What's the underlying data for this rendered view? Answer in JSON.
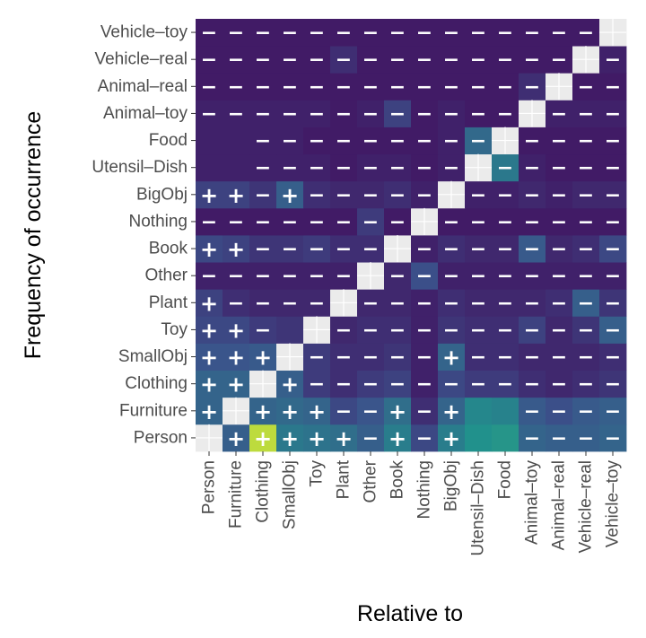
{
  "chart_data": {
    "type": "heatmap",
    "title": "",
    "xlabel": "Relative to",
    "ylabel": "Frequency of occurrence",
    "categories": [
      "Person",
      "Furniture",
      "Clothing",
      "SmallObj",
      "Toy",
      "Plant",
      "Other",
      "Book",
      "Nothing",
      "BigObj",
      "Utensil–Dish",
      "Food",
      "Animal–toy",
      "Animal–real",
      "Vehicle–real",
      "Vehicle–toy"
    ],
    "rows_bottom_to_top": [
      "Person",
      "Furniture",
      "Clothing",
      "SmallObj",
      "Toy",
      "Plant",
      "Other",
      "Book",
      "Nothing",
      "BigObj",
      "Utensil–Dish",
      "Food",
      "Animal–toy",
      "Animal–real",
      "Vehicle–real",
      "Vehicle–toy"
    ],
    "diagonal": "not applicable (blank)",
    "colormap": "viridis",
    "values": [
      [
        null,
        0.3,
        0.9,
        0.4,
        0.38,
        0.36,
        0.3,
        0.42,
        0.22,
        0.42,
        0.5,
        0.52,
        0.32,
        0.3,
        0.3,
        0.32
      ],
      [
        0.32,
        null,
        0.32,
        0.34,
        0.32,
        0.22,
        0.26,
        0.36,
        0.14,
        0.32,
        0.46,
        0.44,
        0.28,
        0.24,
        0.28,
        0.3
      ],
      [
        0.32,
        0.32,
        null,
        0.3,
        0.18,
        0.14,
        0.18,
        0.2,
        0.1,
        0.22,
        0.18,
        0.18,
        0.14,
        0.12,
        0.14,
        0.16
      ],
      [
        0.26,
        0.26,
        0.28,
        null,
        0.18,
        0.14,
        0.14,
        0.16,
        0.1,
        0.32,
        0.14,
        0.14,
        0.12,
        0.12,
        0.12,
        0.14
      ],
      [
        0.22,
        0.22,
        0.18,
        0.16,
        null,
        0.12,
        0.14,
        0.14,
        0.1,
        0.16,
        0.14,
        0.14,
        0.2,
        0.12,
        0.16,
        0.3
      ],
      [
        0.2,
        0.14,
        0.12,
        0.12,
        0.12,
        null,
        0.12,
        0.12,
        0.1,
        0.14,
        0.12,
        0.12,
        0.12,
        0.14,
        0.3,
        0.16
      ],
      [
        0.1,
        0.1,
        0.1,
        0.1,
        0.1,
        0.1,
        null,
        0.12,
        0.24,
        0.1,
        0.1,
        0.1,
        0.1,
        0.1,
        0.1,
        0.1
      ],
      [
        0.22,
        0.2,
        0.16,
        0.16,
        0.18,
        0.14,
        0.14,
        null,
        0.1,
        0.14,
        0.12,
        0.12,
        0.28,
        0.12,
        0.14,
        0.22
      ],
      [
        0.08,
        0.08,
        0.08,
        0.08,
        0.08,
        0.08,
        0.18,
        0.08,
        null,
        0.08,
        0.08,
        0.08,
        0.08,
        0.08,
        0.08,
        0.08
      ],
      [
        0.2,
        0.2,
        0.16,
        0.3,
        0.14,
        0.12,
        0.12,
        0.14,
        0.1,
        null,
        0.1,
        0.1,
        0.12,
        0.1,
        0.12,
        0.12
      ],
      [
        0.1,
        0.1,
        0.1,
        0.1,
        0.1,
        0.08,
        0.1,
        0.1,
        0.08,
        0.1,
        null,
        0.4,
        0.1,
        0.08,
        0.08,
        0.08
      ],
      [
        0.1,
        0.1,
        0.1,
        0.1,
        0.08,
        0.08,
        0.08,
        0.08,
        0.08,
        0.1,
        0.34,
        null,
        0.08,
        0.08,
        0.08,
        0.08
      ],
      [
        0.1,
        0.1,
        0.1,
        0.1,
        0.1,
        0.08,
        0.1,
        0.2,
        0.08,
        0.1,
        0.08,
        0.08,
        null,
        0.1,
        0.1,
        0.1
      ],
      [
        0.08,
        0.08,
        0.08,
        0.08,
        0.08,
        0.08,
        0.08,
        0.08,
        0.08,
        0.08,
        0.08,
        0.08,
        0.14,
        null,
        0.08,
        0.08
      ],
      [
        0.08,
        0.08,
        0.08,
        0.08,
        0.08,
        0.14,
        0.08,
        0.08,
        0.08,
        0.08,
        0.08,
        0.08,
        0.08,
        0.08,
        null,
        0.1
      ],
      [
        0.08,
        0.08,
        0.08,
        0.08,
        0.08,
        0.08,
        0.08,
        0.08,
        0.08,
        0.08,
        0.08,
        0.08,
        0.08,
        0.08,
        0.08,
        null
      ]
    ],
    "signs": [
      [
        "",
        "+",
        "+",
        "+",
        "+",
        "+",
        "−",
        "+",
        "−",
        "+",
        "",
        "",
        "−",
        "−",
        "−",
        "−"
      ],
      [
        "+",
        "",
        "+",
        "+",
        "+",
        "−",
        "−",
        "+",
        "−",
        "+",
        "",
        "",
        "−",
        "−",
        "−",
        "−"
      ],
      [
        "+",
        "+",
        "",
        "+",
        "−",
        "−",
        "−",
        "−",
        "−",
        "−",
        "−",
        "−",
        "−",
        "−",
        "−",
        "−"
      ],
      [
        "+",
        "+",
        "+",
        "",
        "−",
        "−",
        "−",
        "−",
        "−",
        "+",
        "−",
        "−",
        "−",
        "−",
        "−",
        "−"
      ],
      [
        "+",
        "+",
        "−",
        "",
        "",
        "−",
        "−",
        "−",
        "−",
        "−",
        "−",
        "−",
        "−",
        "−",
        "−",
        "−"
      ],
      [
        "+",
        "−",
        "−",
        "−",
        "−",
        "",
        "−",
        "−",
        "−",
        "−",
        "−",
        "−",
        "−",
        "−",
        "−",
        "−"
      ],
      [
        "−",
        "−",
        "−",
        "−",
        "−",
        "−",
        "",
        "−",
        "−",
        "−",
        "−",
        "−",
        "−",
        "−",
        "−",
        "−"
      ],
      [
        "+",
        "+",
        "−",
        "−",
        "−",
        "−",
        "−",
        "",
        "−",
        "−",
        "−",
        "−",
        "−",
        "−",
        "−",
        "−"
      ],
      [
        "−",
        "−",
        "−",
        "−",
        "−",
        "−",
        "−",
        "−",
        "",
        "−",
        "−",
        "−",
        "−",
        "−",
        "−",
        "−"
      ],
      [
        "+",
        "+",
        "−",
        "+",
        "−",
        "−",
        "−",
        "−",
        "−",
        "",
        "−",
        "−",
        "−",
        "−",
        "−",
        "−"
      ],
      [
        "",
        "",
        "−",
        "−",
        "−",
        "−",
        "−",
        "−",
        "−",
        "−",
        "",
        "−",
        "−",
        "−",
        "−",
        "−"
      ],
      [
        "",
        "",
        "−",
        "−",
        "−",
        "−",
        "−",
        "−",
        "−",
        "−",
        "−",
        "",
        "−",
        "−",
        "−",
        "−"
      ],
      [
        "−",
        "−",
        "−",
        "−",
        "−",
        "−",
        "−",
        "−",
        "−",
        "−",
        "−",
        "−",
        "",
        "−",
        "−",
        "−"
      ],
      [
        "−",
        "−",
        "−",
        "−",
        "−",
        "−",
        "−",
        "−",
        "−",
        "−",
        "−",
        "−",
        "−",
        "",
        "−",
        "−"
      ],
      [
        "−",
        "−",
        "−",
        "−",
        "−",
        "−",
        "−",
        "−",
        "−",
        "−",
        "−",
        "−",
        "−",
        "−",
        "",
        "−"
      ],
      [
        "−",
        "−",
        "−",
        "−",
        "−",
        "−",
        "−",
        "−",
        "−",
        "−",
        "−",
        "−",
        "−",
        "−",
        "−",
        ""
      ]
    ],
    "grid": false,
    "legend": "none",
    "colors": {
      "diagonal": "#ebebeb",
      "sign": "#ffffff",
      "tick_text": "#4d4d4d",
      "title_text": "#000000"
    }
  }
}
